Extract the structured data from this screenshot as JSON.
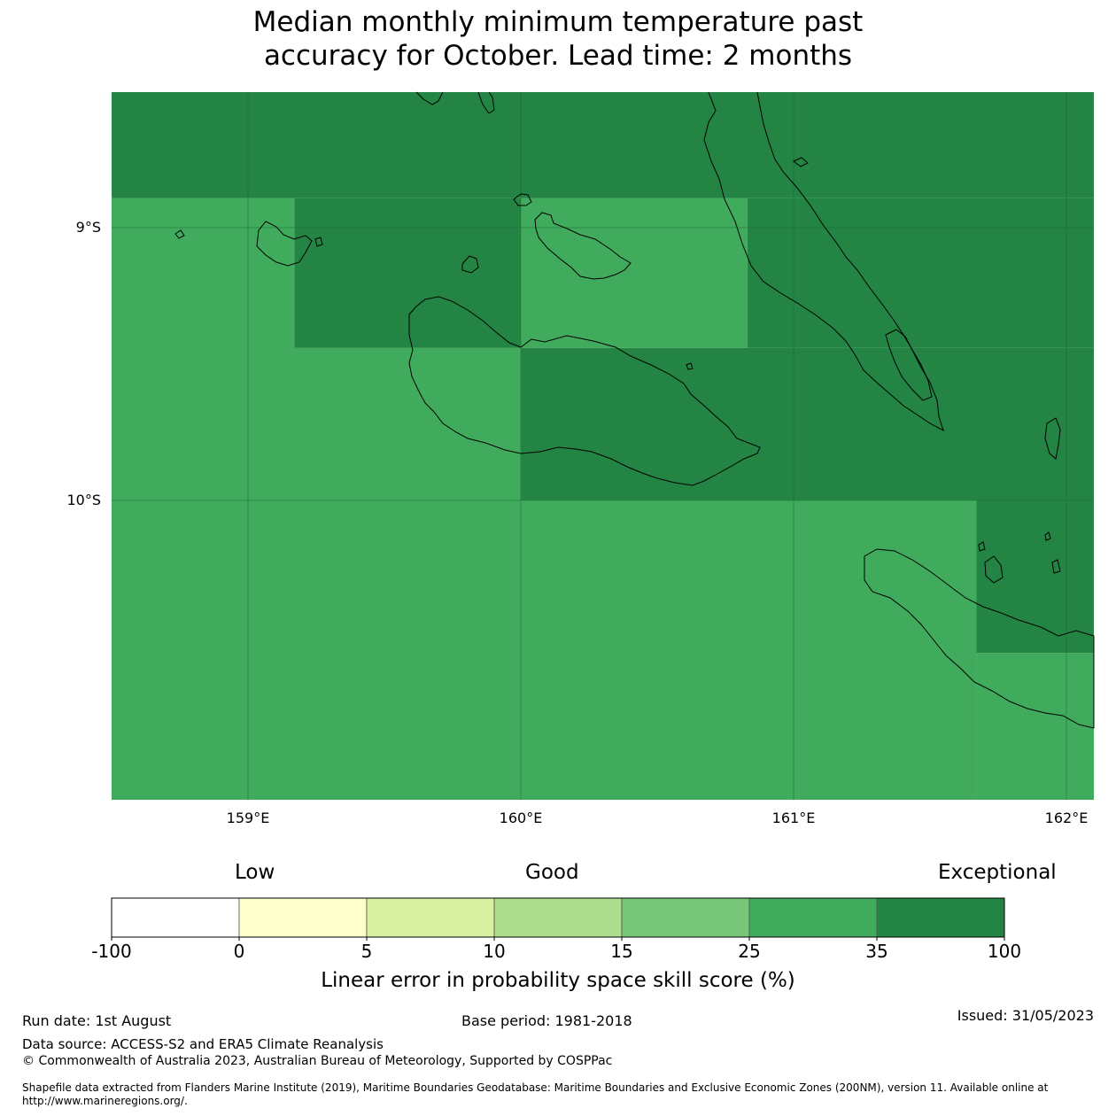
{
  "title_line1": "Median monthly minimum temperature past",
  "title_line2": "accuracy for October. Lead time: 2 months",
  "map": {
    "lon_range": [
      158.5,
      162.1
    ],
    "lat_range": [
      -11.1,
      -8.5
    ],
    "x_ticks": [
      "159°E",
      "160°E",
      "161°E",
      "162°E"
    ],
    "y_ticks": [
      "9°S",
      "10°S"
    ],
    "cells": [
      {
        "lon0": 158.5,
        "lon1": 162.1,
        "lat0": -8.89,
        "lat1": -8.5,
        "value_class": "35-100"
      },
      {
        "lon0": 158.5,
        "lon1": 159.17,
        "lat0": -10.0,
        "lat1": -8.89,
        "value_class": "25-35"
      },
      {
        "lon0": 159.17,
        "lon1": 160.0,
        "lat0": -9.44,
        "lat1": -8.89,
        "value_class": "35-100"
      },
      {
        "lon0": 158.5,
        "lon1": 160.0,
        "lat0": -10.0,
        "lat1": -9.44,
        "value_class": "25-35"
      },
      {
        "lon0": 160.0,
        "lon1": 160.83,
        "lat0": -9.44,
        "lat1": -8.89,
        "value_class": "25-35"
      },
      {
        "lon0": 160.83,
        "lon1": 162.1,
        "lat0": -9.44,
        "lat1": -8.89,
        "value_class": "35-100"
      },
      {
        "lon0": 160.0,
        "lon1": 162.1,
        "lat0": -10.0,
        "lat1": -9.44,
        "value_class": "35-100"
      },
      {
        "lon0": 158.5,
        "lon1": 161.67,
        "lat0": -11.1,
        "lat1": -10.0,
        "value_class": "25-35"
      },
      {
        "lon0": 161.67,
        "lon1": 162.1,
        "lat0": -10.56,
        "lat1": -10.0,
        "value_class": "35-100"
      },
      {
        "lon0": 161.67,
        "lon1": 162.1,
        "lat0": -11.1,
        "lat1": -10.56,
        "value_class": "25-35"
      }
    ]
  },
  "legend": {
    "category_low": "Low",
    "category_good": "Good",
    "category_exceptional": "Exceptional",
    "bins": [
      {
        "color": "#ffffff"
      },
      {
        "color": "#ffffcc"
      },
      {
        "color": "#d9f0a3"
      },
      {
        "color": "#addd8e"
      },
      {
        "color": "#78c679"
      },
      {
        "color": "#41ab5d"
      },
      {
        "color": "#238443"
      }
    ],
    "tick_labels": [
      "-100",
      "0",
      "5",
      "10",
      "15",
      "25",
      "35",
      "100"
    ],
    "label": "Linear error in probability space skill score (%)"
  },
  "footer": {
    "run_date": "Run date: 1st August",
    "base_period": "Base period: 1981-2018",
    "issued": "Issued: 31/05/2023",
    "data_source": "Data source: ACCESS-S2 and ERA5 Climate Reanalysis",
    "copyright": "© Commonwealth of Australia 2023, Australian Bureau of Meteorology, Supported by COSPPac",
    "shapefile_line1": "Shapefile data extracted from Flanders Marine Institute (2019), Maritime Boundaries Geodatabase: Maritime Boundaries and Exclusive Economic Zones (200NM), version 11. Available online at",
    "shapefile_line2": "http://www.marineregions.org/."
  },
  "colors": {
    "skill_25_35": "#41ab5d",
    "skill_35_100": "#238443",
    "coastline": "#000000"
  }
}
